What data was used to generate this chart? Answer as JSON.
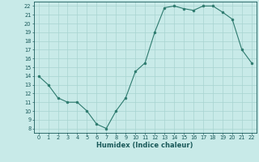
{
  "x": [
    0,
    1,
    2,
    3,
    4,
    5,
    6,
    7,
    8,
    9,
    10,
    11,
    12,
    13,
    14,
    15,
    16,
    17,
    18,
    19,
    20,
    21,
    22
  ],
  "y": [
    14,
    13,
    11.5,
    11,
    11,
    10,
    8.5,
    8,
    10,
    11.5,
    14.5,
    15.5,
    19,
    21.8,
    22,
    21.7,
    21.5,
    22,
    22,
    21.3,
    20.5,
    17,
    15.5
  ],
  "line_color": "#2d7a6e",
  "marker_color": "#2d7a6e",
  "bg_color": "#c8eae8",
  "grid_color": "#a8d4d0",
  "xlabel": "Humidex (Indice chaleur)",
  "xlim": [
    -0.5,
    22.5
  ],
  "ylim": [
    7.5,
    22.5
  ],
  "yticks": [
    8,
    9,
    10,
    11,
    12,
    13,
    14,
    15,
    16,
    17,
    18,
    19,
    20,
    21,
    22
  ],
  "xticks": [
    0,
    1,
    2,
    3,
    4,
    5,
    6,
    7,
    8,
    9,
    10,
    11,
    12,
    13,
    14,
    15,
    16,
    17,
    18,
    19,
    20,
    21,
    22
  ],
  "font_color": "#1a5a5a",
  "tick_fontsize": 4.8,
  "label_fontsize": 6.0
}
